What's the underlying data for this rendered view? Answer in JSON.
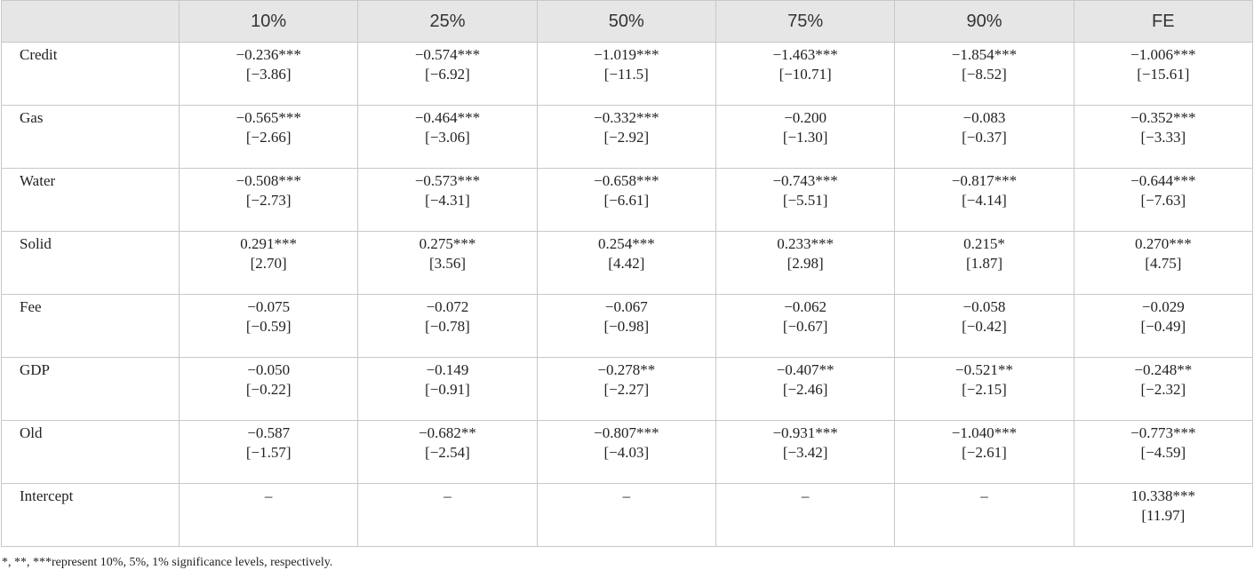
{
  "table": {
    "columns": [
      "10%",
      "25%",
      "50%",
      "75%",
      "90%",
      "FE"
    ],
    "rows": [
      {
        "label": "Credit",
        "cells": [
          [
            "−0.236***",
            "[−3.86]"
          ],
          [
            "−0.574***",
            "[−6.92]"
          ],
          [
            "−1.019***",
            "[−11.5]"
          ],
          [
            "−1.463***",
            "[−10.71]"
          ],
          [
            "−1.854***",
            "[−8.52]"
          ],
          [
            "−1.006***",
            "[−15.61]"
          ]
        ]
      },
      {
        "label": "Gas",
        "cells": [
          [
            "−0.565***",
            "[−2.66]"
          ],
          [
            "−0.464***",
            "[−3.06]"
          ],
          [
            "−0.332***",
            "[−2.92]"
          ],
          [
            "−0.200",
            "[−1.30]"
          ],
          [
            "−0.083",
            "[−0.37]"
          ],
          [
            "−0.352***",
            "[−3.33]"
          ]
        ]
      },
      {
        "label": "Water",
        "cells": [
          [
            "−0.508***",
            "[−2.73]"
          ],
          [
            "−0.573***",
            "[−4.31]"
          ],
          [
            "−0.658***",
            "[−6.61]"
          ],
          [
            "−0.743***",
            "[−5.51]"
          ],
          [
            "−0.817***",
            "[−4.14]"
          ],
          [
            "−0.644***",
            "[−7.63]"
          ]
        ]
      },
      {
        "label": "Solid",
        "cells": [
          [
            "0.291***",
            "[2.70]"
          ],
          [
            "0.275***",
            "[3.56]"
          ],
          [
            "0.254***",
            "[4.42]"
          ],
          [
            "0.233***",
            "[2.98]"
          ],
          [
            "0.215*",
            "[1.87]"
          ],
          [
            "0.270***",
            "[4.75]"
          ]
        ]
      },
      {
        "label": "Fee",
        "cells": [
          [
            "−0.075",
            "[−0.59]"
          ],
          [
            "−0.072",
            "[−0.78]"
          ],
          [
            "−0.067",
            "[−0.98]"
          ],
          [
            "−0.062",
            "[−0.67]"
          ],
          [
            "−0.058",
            "[−0.42]"
          ],
          [
            "−0.029",
            "[−0.49]"
          ]
        ]
      },
      {
        "label": "GDP",
        "cells": [
          [
            "−0.050",
            "[−0.22]"
          ],
          [
            "−0.149",
            "[−0.91]"
          ],
          [
            "−0.278**",
            "[−2.27]"
          ],
          [
            "−0.407**",
            "[−2.46]"
          ],
          [
            "−0.521**",
            "[−2.15]"
          ],
          [
            "−0.248**",
            "[−2.32]"
          ]
        ]
      },
      {
        "label": "Old",
        "cells": [
          [
            "−0.587",
            "[−1.57]"
          ],
          [
            "−0.682**",
            "[−2.54]"
          ],
          [
            "−0.807***",
            "[−4.03]"
          ],
          [
            "−0.931***",
            "[−3.42]"
          ],
          [
            "−1.040***",
            "[−2.61]"
          ],
          [
            "−0.773***",
            "[−4.59]"
          ]
        ]
      },
      {
        "label": "Intercept",
        "cells": [
          [
            "–"
          ],
          [
            "–"
          ],
          [
            "–"
          ],
          [
            "–"
          ],
          [
            "–"
          ],
          [
            "10.338***",
            "[11.97]"
          ]
        ]
      }
    ],
    "footnote": "*, **, ***represent 10%, 5%, 1% significance levels, respectively."
  }
}
